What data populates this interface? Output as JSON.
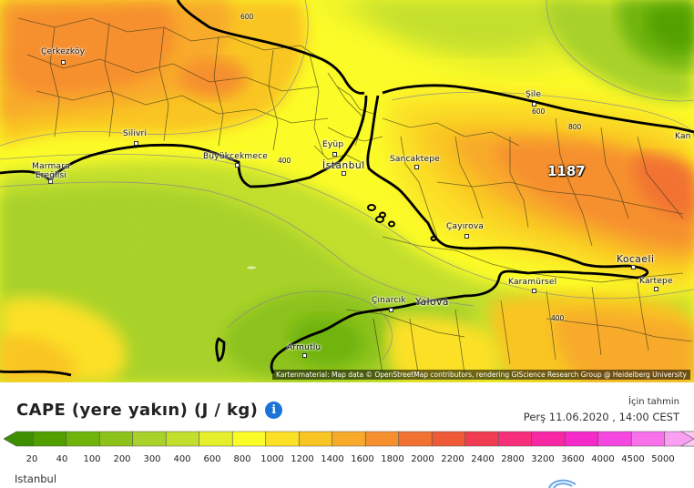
{
  "map": {
    "attribution": "Kartenmaterial: Map data © OpenStreetMap contributors, rendering GIScience Research Group @ Heidelberg University",
    "max_value": "1187",
    "cities": [
      {
        "name": "Çerkezköy"
      },
      {
        "name": "Silivri"
      },
      {
        "name": "Marmara Ereğlisi"
      },
      {
        "name": "Büyükçekmece"
      },
      {
        "name": "Eyüp"
      },
      {
        "name": "İstanbul"
      },
      {
        "name": "Sancaktepe"
      },
      {
        "name": "Şile"
      },
      {
        "name": "Kan"
      },
      {
        "name": "Çayırova"
      },
      {
        "name": "Kocaeli"
      },
      {
        "name": "Karamürsel"
      },
      {
        "name": "Kartepe"
      },
      {
        "name": "Çınarcık"
      },
      {
        "name": "Yalova"
      },
      {
        "name": "Armutlu"
      }
    ],
    "contour_labels": [
      "600",
      "400",
      "600",
      "800",
      "400"
    ]
  },
  "header": {
    "title": "CAPE (yere yakın) (J / kg)",
    "forecast_label": "İçin tahmin",
    "forecast_time": "Perş 11.06.2020 , 14:00 CEST"
  },
  "legend": {
    "ticks": [
      "20",
      "40",
      "100",
      "200",
      "300",
      "400",
      "600",
      "800",
      "1000",
      "1200",
      "1400",
      "1600",
      "1800",
      "2000",
      "2200",
      "2400",
      "2800",
      "3200",
      "3600",
      "4000",
      "4500",
      "5000"
    ],
    "colors": [
      "#3e8f00",
      "#52a000",
      "#6fb40a",
      "#8cc21a",
      "#a8d22a",
      "#c3df2e",
      "#e5ef2c",
      "#fbfb28",
      "#fbe025",
      "#f9c523",
      "#f8aa2a",
      "#f68f2e",
      "#f27232",
      "#ee5a36",
      "#f03c50",
      "#f72f7a",
      "#f827a3",
      "#f52ac9",
      "#f547e0",
      "#f870ea",
      "#faa0f2",
      "#fcc9f8"
    ]
  },
  "footer": {
    "location": "Istanbul"
  }
}
